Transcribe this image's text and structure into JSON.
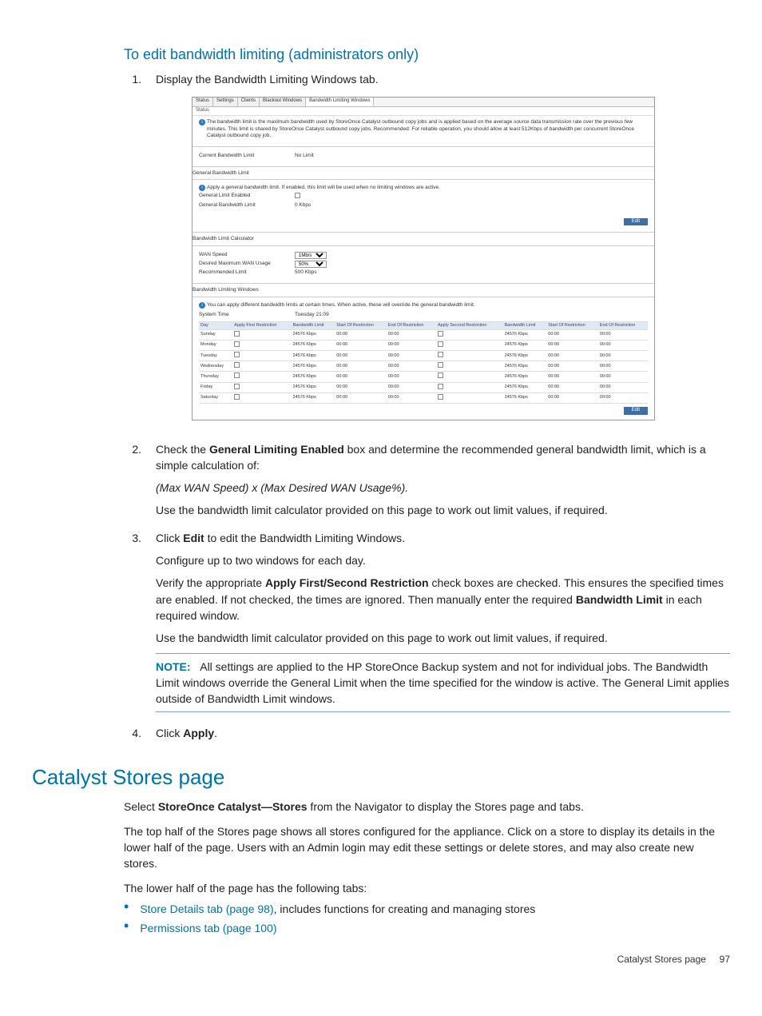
{
  "heading": "To edit bandwidth limiting (administrators only)",
  "steps": [
    {
      "n": "1.",
      "paras": [
        {
          "t": "Display the Bandwidth Limiting Windows tab."
        }
      ]
    },
    {
      "n": "2.",
      "paras": [
        {
          "rich": [
            {
              "t": "Check the "
            },
            {
              "t": "General Limiting Enabled",
              "b": true
            },
            {
              "t": " box and determine the recommended general bandwidth limit, which is a simple calculation of:"
            }
          ]
        },
        {
          "t": "(Max WAN Speed) x (Max Desired WAN Usage%).",
          "i": true
        },
        {
          "t": "Use the bandwidth limit calculator provided on this page to work out limit values, if required."
        }
      ]
    },
    {
      "n": "3.",
      "paras": [
        {
          "rich": [
            {
              "t": "Click "
            },
            {
              "t": "Edit",
              "b": true
            },
            {
              "t": " to edit the Bandwidth Limiting Windows."
            }
          ]
        },
        {
          "t": "Configure up to two windows for each day."
        },
        {
          "rich": [
            {
              "t": "Verify the appropriate "
            },
            {
              "t": "Apply First/Second Restriction",
              "b": true
            },
            {
              "t": " check boxes are checked. This ensures the specified times are enabled. If not checked, the times are ignored. Then manually enter the required "
            },
            {
              "t": "Bandwidth Limit",
              "b": true
            },
            {
              "t": " in each required window."
            }
          ]
        },
        {
          "t": "Use the bandwidth limit calculator provided on this page to work out limit values, if required."
        }
      ],
      "note": {
        "label": "NOTE:",
        "text": "All settings are applied to the HP StoreOnce Backup system and not for individual jobs. The Bandwidth Limit windows override the General Limit when the time specified for the window is active. The General Limit applies outside of Bandwidth Limit windows."
      }
    },
    {
      "n": "4.",
      "paras": [
        {
          "rich": [
            {
              "t": "Click "
            },
            {
              "t": "Apply",
              "b": true
            },
            {
              "t": "."
            }
          ]
        }
      ]
    }
  ],
  "section2": {
    "title": "Catalyst Stores page",
    "p1": {
      "rich": [
        {
          "t": "Select "
        },
        {
          "t": "StoreOnce Catalyst—Stores",
          "b": true
        },
        {
          "t": " from the Navigator to display the Stores page and tabs."
        }
      ]
    },
    "p2": "The top half of the Stores page shows all stores configured for the appliance. Click on a store to display its details in the lower half of the page. Users with an Admin login may edit these settings or delete stores, and may also create new stores.",
    "p3": "The lower half of the page has the following tabs:",
    "bullets": [
      {
        "link": "Store Details tab (page 98)",
        "text": ", includes functions for creating and managing stores"
      },
      {
        "link": "Permissions tab (page 100)",
        "text": ""
      }
    ]
  },
  "footer": {
    "label": "Catalyst Stores page",
    "page": "97"
  },
  "screenshot": {
    "tabs": [
      "Status",
      "Settings",
      "Clients",
      "Blackout Windows",
      "Bandwidth Limiting Windows"
    ],
    "activeSub": "Status",
    "info1": "The bandwidth limit is the maximum bandwidth used by StoreOnce Catalyst outbound copy jobs and is applied based on the average source data transmission rate over the previous few minutes. This limit is shared by StoreOnce Catalyst outbound copy jobs. Recommended: For reliable operation, you should allow at least 512Kbps of bandwidth per concurrent StoreOnce Catalyst outbound copy job.",
    "rows1": [
      {
        "l": "Current Bandwidth Limit",
        "v": "No Limit"
      }
    ],
    "gbl_head": "General Bandwidth Limit",
    "info2": "Apply a general bandwidth limit. If enabled, this limit will be used when no limiting windows are active.",
    "rows2": [
      {
        "l": "General Limit Enabled",
        "v": "",
        "chk": true
      },
      {
        "l": "General Bandwidth Limit",
        "v": "0 Kbps"
      }
    ],
    "btn_edit": "Edit",
    "calc_head": "Bandwidth Limit Calculator",
    "calc_rows": [
      {
        "l": "WAN Speed",
        "sel": "1Mb/s"
      },
      {
        "l": "Desired Maximum WAN Usage",
        "sel": "50%"
      },
      {
        "l": "Recommended Limit",
        "v": "500 Kbps"
      }
    ],
    "blw_head": "Bandwidth Limiting Windows",
    "info3": "You can apply different bandwidth limits at certain times. When active, these will override the general bandwidth limit.",
    "systime_l": "System Time",
    "systime_v": "Tuesday 21:09",
    "thead": [
      "Day",
      "Apply First Restriction",
      "Bandwidth Limit",
      "Start Of Restriction",
      "End Of Restriction",
      "Apply Second Restriction",
      "Bandwidth Limit",
      "Start Of Restriction",
      "End Of Restriction"
    ],
    "trows": [
      [
        "Sunday",
        "",
        "24576 Kbps",
        "00:00",
        "00:00",
        "",
        "24576 Kbps",
        "00:00",
        "00:00"
      ],
      [
        "Monday",
        "",
        "24576 Kbps",
        "00:00",
        "00:00",
        "",
        "24576 Kbps",
        "00:00",
        "00:00"
      ],
      [
        "Tuesday",
        "",
        "24576 Kbps",
        "00:00",
        "00:00",
        "",
        "24576 Kbps",
        "00:00",
        "00:00"
      ],
      [
        "Wednesday",
        "",
        "24576 Kbps",
        "00:00",
        "00:00",
        "",
        "24576 Kbps",
        "00:00",
        "00:00"
      ],
      [
        "Thursday",
        "",
        "24576 Kbps",
        "00:00",
        "00:00",
        "",
        "24576 Kbps",
        "00:00",
        "00:00"
      ],
      [
        "Friday",
        "",
        "24576 Kbps",
        "00:00",
        "00:00",
        "",
        "24576 Kbps",
        "00:00",
        "00:00"
      ],
      [
        "Saturday",
        "",
        "24576 Kbps",
        "00:00",
        "00:00",
        "",
        "24576 Kbps",
        "00:00",
        "00:00"
      ]
    ]
  }
}
